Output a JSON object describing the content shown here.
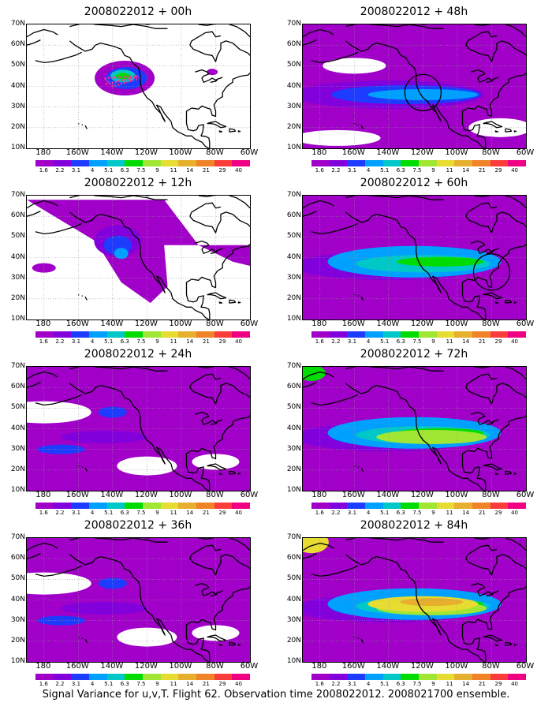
{
  "panels": [
    {
      "title": "2008022012 + 00h",
      "level": 0
    },
    {
      "title": "2008022012 + 48h",
      "level": 3,
      "circle": {
        "lon": -120,
        "lat": 37
      }
    },
    {
      "title": "2008022012 + 12h",
      "level": 1
    },
    {
      "title": "2008022012 + 60h",
      "level": 4,
      "circle": {
        "lon": -80,
        "lat": 33
      }
    },
    {
      "title": "2008022012 + 24h",
      "level": 2
    },
    {
      "title": "2008022012 + 72h",
      "level": 5
    },
    {
      "title": "2008022012 + 36h",
      "level": 2
    },
    {
      "title": "2008022012 + 84h",
      "level": 6
    }
  ],
  "y_axis_labels": [
    "70N",
    "60N",
    "50N",
    "40N",
    "30N",
    "20N",
    "10N"
  ],
  "x_axis_labels": [
    "180",
    "160W",
    "140W",
    "120W",
    "100W",
    "80W",
    "60W"
  ],
  "colorbar": {
    "labels": [
      "1.6",
      "2.2",
      "3.1",
      "4",
      "5.1",
      "6.3",
      "7.5",
      "9",
      "11",
      "14",
      "21",
      "29",
      "40"
    ],
    "colors": [
      "#a000c8",
      "#8200dc",
      "#1e3cff",
      "#00a0ff",
      "#00c8c8",
      "#00dc00",
      "#a0e632",
      "#e6dc32",
      "#e6af2d",
      "#f08228",
      "#fa3c3c",
      "#f00082"
    ]
  },
  "caption": "Signal Variance for u,v,T. Flight 62. Observation time 2008022012. 2008021700 ensemble."
}
